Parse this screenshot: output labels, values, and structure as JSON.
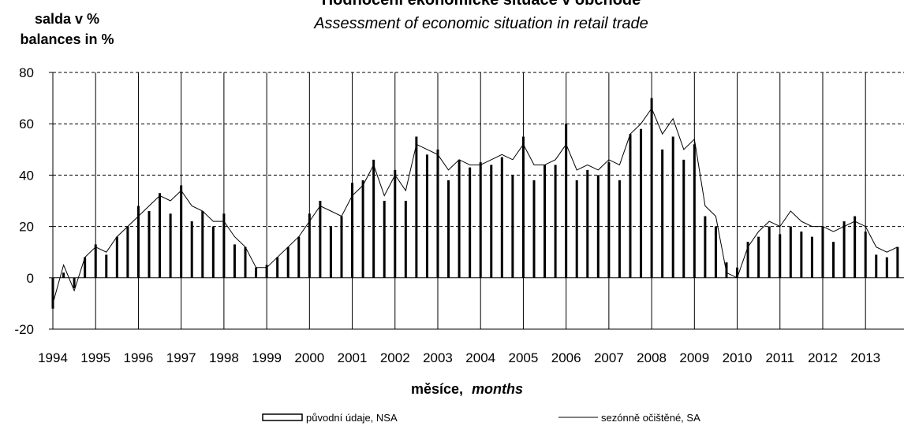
{
  "chart_data": {
    "type": "bar",
    "title": "Hodnocení ekonomické situace v obchodě",
    "subtitle": "Assessment of economic situation in retail trade",
    "ylabel_cz": "salda v %",
    "ylabel_en": "balances in %",
    "xlabel_cz": "měsíce,",
    "xlabel_en": "months",
    "ylim": [
      -20,
      80
    ],
    "yticks": [
      "80",
      "60",
      "40",
      "20",
      "0",
      "-20"
    ],
    "xticks": [
      "1994",
      "1995",
      "1996",
      "1997",
      "1998",
      "1999",
      "2000",
      "2001",
      "2002",
      "2003",
      "2004",
      "2005",
      "2006",
      "2007",
      "2008",
      "2009",
      "2010",
      "2011",
      "2012",
      "2013"
    ],
    "grid": {
      "horizontal": "dashed",
      "vertical": "solid"
    },
    "legend_position": "bottom",
    "series": [
      {
        "name": "původní údaje, NSA",
        "render": "bar",
        "x": [
          1994.0,
          1994.25,
          1994.5,
          1994.75,
          1995.0,
          1995.25,
          1995.5,
          1995.75,
          1996.0,
          1996.25,
          1996.5,
          1996.75,
          1997.0,
          1997.25,
          1997.5,
          1997.75,
          1998.0,
          1998.25,
          1998.5,
          1998.75,
          1999.0,
          1999.25,
          1999.5,
          1999.75,
          2000.0,
          2000.25,
          2000.5,
          2000.75,
          2001.0,
          2001.25,
          2001.5,
          2001.75,
          2002.0,
          2002.25,
          2002.5,
          2002.75,
          2003.0,
          2003.25,
          2003.5,
          2003.75,
          2004.0,
          2004.25,
          2004.5,
          2004.75,
          2005.0,
          2005.25,
          2005.5,
          2005.75,
          2006.0,
          2006.25,
          2006.5,
          2006.75,
          2007.0,
          2007.25,
          2007.5,
          2007.75,
          2008.0,
          2008.25,
          2008.5,
          2008.75,
          2009.0,
          2009.25,
          2009.5,
          2009.75,
          2010.0,
          2010.25,
          2010.5,
          2010.75,
          2011.0,
          2011.25,
          2011.5,
          2011.75,
          2012.0,
          2012.25,
          2012.5,
          2012.75,
          2013.0,
          2013.25,
          2013.5,
          2013.75
        ],
        "values": [
          -12,
          2,
          -4,
          8,
          13,
          9,
          16,
          20,
          28,
          26,
          33,
          25,
          36,
          22,
          26,
          20,
          25,
          13,
          12,
          4,
          5,
          8,
          12,
          16,
          25,
          30,
          20,
          24,
          37,
          38,
          46,
          30,
          42,
          30,
          55,
          48,
          50,
          38,
          46,
          43,
          45,
          44,
          47,
          40,
          55,
          38,
          44,
          44,
          60,
          38,
          42,
          40,
          45,
          38,
          56,
          58,
          70,
          50,
          55,
          46,
          52,
          24,
          20,
          6,
          4,
          14,
          16,
          20,
          17,
          20,
          18,
          16,
          20,
          14,
          22,
          24,
          18,
          9,
          8,
          12
        ]
      },
      {
        "name": "sezónně očištěné, SA",
        "render": "line",
        "x": [
          1994.0,
          1994.25,
          1994.5,
          1994.75,
          1995.0,
          1995.25,
          1995.5,
          1995.75,
          1996.0,
          1996.25,
          1996.5,
          1996.75,
          1997.0,
          1997.25,
          1997.5,
          1997.75,
          1998.0,
          1998.25,
          1998.5,
          1998.75,
          1999.0,
          1999.25,
          1999.5,
          1999.75,
          2000.0,
          2000.25,
          2000.5,
          2000.75,
          2001.0,
          2001.25,
          2001.5,
          2001.75,
          2002.0,
          2002.25,
          2002.5,
          2002.75,
          2003.0,
          2003.25,
          2003.5,
          2003.75,
          2004.0,
          2004.25,
          2004.5,
          2004.75,
          2005.0,
          2005.25,
          2005.5,
          2005.75,
          2006.0,
          2006.25,
          2006.5,
          2006.75,
          2007.0,
          2007.25,
          2007.5,
          2007.75,
          2008.0,
          2008.25,
          2008.5,
          2008.75,
          2009.0,
          2009.25,
          2009.5,
          2009.75,
          2010.0,
          2010.25,
          2010.5,
          2010.75,
          2011.0,
          2011.25,
          2011.5,
          2011.75,
          2012.0,
          2012.25,
          2012.5,
          2012.75,
          2013.0,
          2013.25,
          2013.5,
          2013.75
        ],
        "values": [
          -10,
          5,
          -5,
          8,
          12,
          10,
          16,
          20,
          24,
          28,
          32,
          30,
          34,
          28,
          26,
          22,
          22,
          16,
          12,
          4,
          4,
          8,
          12,
          16,
          22,
          28,
          26,
          24,
          32,
          36,
          44,
          32,
          40,
          34,
          52,
          50,
          48,
          42,
          46,
          44,
          44,
          46,
          48,
          46,
          52,
          44,
          44,
          46,
          52,
          42,
          44,
          42,
          46,
          44,
          56,
          60,
          66,
          56,
          62,
          50,
          54,
          28,
          24,
          2,
          0,
          12,
          18,
          22,
          20,
          26,
          22,
          20,
          20,
          18,
          20,
          22,
          20,
          12,
          10,
          12
        ]
      }
    ]
  }
}
